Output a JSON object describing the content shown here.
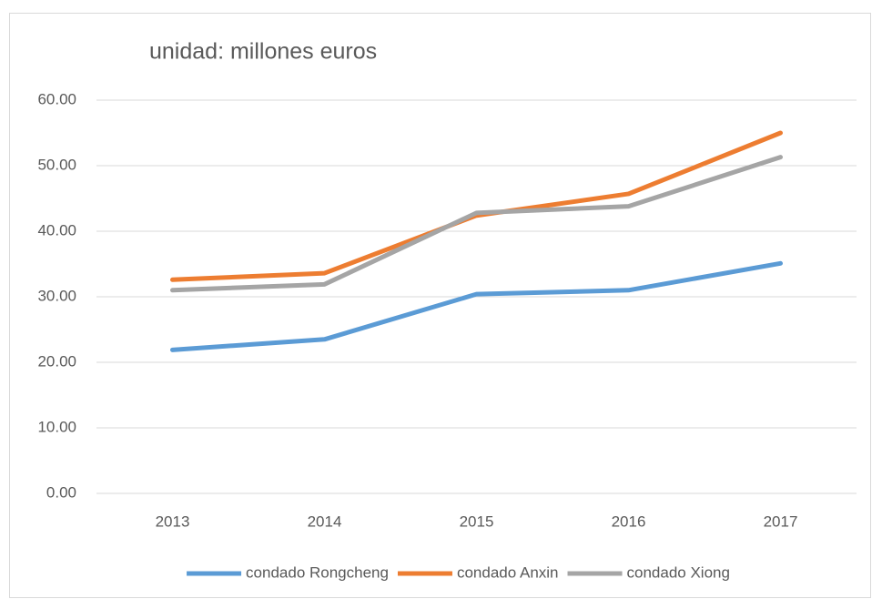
{
  "chart_data": {
    "type": "line",
    "title": "unidad: millones euros",
    "categories": [
      "2013",
      "2014",
      "2015",
      "2016",
      "2017"
    ],
    "series": [
      {
        "name": "condado Rongcheng",
        "color": "#5b9bd5",
        "values": [
          21.9,
          23.5,
          30.4,
          31.0,
          35.1
        ]
      },
      {
        "name": "condado Anxin",
        "color": "#ed7d31",
        "values": [
          32.6,
          33.6,
          42.4,
          45.7,
          55.0
        ]
      },
      {
        "name": "condado Xiong",
        "color": "#a5a5a5",
        "values": [
          31.0,
          31.9,
          42.8,
          43.8,
          51.3
        ]
      }
    ],
    "ylim": [
      0,
      60
    ],
    "yticks": [
      {
        "value": 0,
        "label": "0.00"
      },
      {
        "value": 10,
        "label": "10.00"
      },
      {
        "value": 20,
        "label": "20.00"
      },
      {
        "value": 30,
        "label": "30.00"
      },
      {
        "value": 40,
        "label": "40.00"
      },
      {
        "value": 50,
        "label": "50.00"
      },
      {
        "value": 60,
        "label": "60.00"
      }
    ],
    "grid": true,
    "legend": "bottom"
  }
}
